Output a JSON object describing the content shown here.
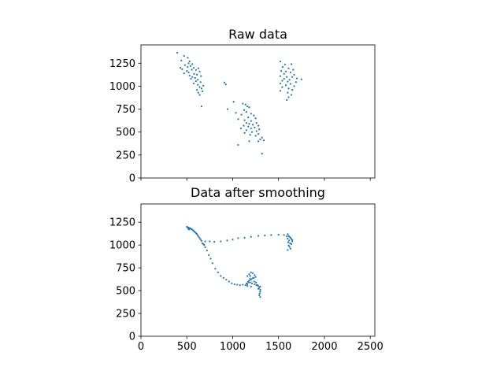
{
  "chart_data": [
    {
      "type": "scatter",
      "title": "Raw data",
      "xlabel": "",
      "ylabel": "",
      "xlim": [
        0,
        2550
      ],
      "ylim": [
        0,
        1450
      ],
      "xticks": [
        0,
        500,
        1000,
        1500,
        2000,
        2500
      ],
      "yticks": [
        0,
        250,
        500,
        750,
        1000,
        1250
      ],
      "show_xtick_labels": false,
      "grid": false,
      "marker_color": "#1f77b4",
      "points": [
        [
          395,
          1365
        ],
        [
          470,
          1330
        ],
        [
          510,
          1310
        ],
        [
          440,
          1280
        ],
        [
          530,
          1270
        ],
        [
          520,
          1250
        ],
        [
          560,
          1240
        ],
        [
          480,
          1230
        ],
        [
          540,
          1220
        ],
        [
          510,
          1210
        ],
        [
          430,
          1200
        ],
        [
          575,
          1200
        ],
        [
          625,
          1195
        ],
        [
          450,
          1185
        ],
        [
          555,
          1180
        ],
        [
          600,
          1175
        ],
        [
          500,
          1165
        ],
        [
          640,
          1160
        ],
        [
          520,
          1150
        ],
        [
          470,
          1140
        ],
        [
          580,
          1135
        ],
        [
          610,
          1125
        ],
        [
          530,
          1115
        ],
        [
          655,
          1110
        ],
        [
          560,
          1100
        ],
        [
          590,
          1090
        ],
        [
          545,
          1080
        ],
        [
          620,
          1070
        ],
        [
          600,
          1055
        ],
        [
          650,
          1045
        ],
        [
          575,
          1030
        ],
        [
          620,
          1015
        ],
        [
          680,
          1005
        ],
        [
          640,
          990
        ],
        [
          660,
          975
        ],
        [
          610,
          960
        ],
        [
          670,
          945
        ],
        [
          625,
          930
        ],
        [
          640,
          905
        ],
        [
          660,
          780
        ],
        [
          910,
          1040
        ],
        [
          925,
          1020
        ],
        [
          1010,
          830
        ],
        [
          945,
          750
        ],
        [
          1035,
          710
        ],
        [
          1110,
          810
        ],
        [
          1140,
          800
        ],
        [
          1160,
          780
        ],
        [
          1180,
          770
        ],
        [
          1125,
          740
        ],
        [
          1150,
          720
        ],
        [
          1200,
          700
        ],
        [
          1095,
          690
        ],
        [
          1230,
          680
        ],
        [
          1170,
          660
        ],
        [
          1250,
          650
        ],
        [
          1060,
          640
        ],
        [
          1130,
          630
        ],
        [
          1200,
          620
        ],
        [
          1150,
          600
        ],
        [
          1260,
          600
        ],
        [
          1180,
          590
        ],
        [
          1220,
          580
        ],
        [
          1120,
          570
        ],
        [
          1280,
          570
        ],
        [
          1170,
          560
        ],
        [
          1240,
          550
        ],
        [
          1090,
          540
        ],
        [
          1200,
          540
        ],
        [
          1290,
          530
        ],
        [
          1150,
          520
        ],
        [
          1260,
          510
        ],
        [
          1210,
          500
        ],
        [
          1130,
          490
        ],
        [
          1280,
          480
        ],
        [
          1190,
          470
        ],
        [
          1250,
          460
        ],
        [
          1320,
          440
        ],
        [
          1300,
          420
        ],
        [
          1340,
          410
        ],
        [
          1180,
          400
        ],
        [
          1280,
          400
        ],
        [
          1060,
          360
        ],
        [
          1320,
          265
        ],
        [
          1520,
          1270
        ],
        [
          1570,
          1235
        ],
        [
          1640,
          1240
        ],
        [
          1545,
          1210
        ],
        [
          1610,
          1195
        ],
        [
          1660,
          1180
        ],
        [
          1530,
          1165
        ],
        [
          1580,
          1160
        ],
        [
          1630,
          1150
        ],
        [
          1560,
          1135
        ],
        [
          1670,
          1125
        ],
        [
          1520,
          1110
        ],
        [
          1590,
          1100
        ],
        [
          1650,
          1100
        ],
        [
          1700,
          1085
        ],
        [
          1560,
          1080
        ],
        [
          1620,
          1070
        ],
        [
          1540,
          1060
        ],
        [
          1600,
          1050
        ],
        [
          1690,
          1045
        ],
        [
          1520,
          1030
        ],
        [
          1630,
          1025
        ],
        [
          1580,
          1010
        ],
        [
          1670,
          1000
        ],
        [
          1540,
          990
        ],
        [
          1610,
          975
        ],
        [
          1650,
          960
        ],
        [
          1520,
          950
        ],
        [
          1600,
          930
        ],
        [
          1640,
          905
        ],
        [
          1610,
          880
        ],
        [
          1590,
          850
        ],
        [
          1750,
          1075
        ]
      ]
    },
    {
      "type": "scatter",
      "title": "Data after smoothing",
      "xlabel": "",
      "ylabel": "",
      "xlim": [
        0,
        2550
      ],
      "ylim": [
        0,
        1450
      ],
      "xticks": [
        0,
        500,
        1000,
        1500,
        2000,
        2500
      ],
      "yticks": [
        0,
        250,
        500,
        750,
        1000,
        1250
      ],
      "show_xtick_labels": true,
      "grid": false,
      "marker_color": "#1f77b4",
      "points": [
        [
          500,
          1200
        ],
        [
          510,
          1195
        ],
        [
          520,
          1190
        ],
        [
          530,
          1185
        ],
        [
          515,
          1180
        ],
        [
          540,
          1180
        ],
        [
          550,
          1175
        ],
        [
          525,
          1170
        ],
        [
          560,
          1170
        ],
        [
          570,
          1160
        ],
        [
          580,
          1150
        ],
        [
          590,
          1140
        ],
        [
          600,
          1130
        ],
        [
          610,
          1120
        ],
        [
          620,
          1105
        ],
        [
          630,
          1090
        ],
        [
          640,
          1075
        ],
        [
          650,
          1060
        ],
        [
          660,
          1045
        ],
        [
          670,
          1020
        ],
        [
          680,
          1010
        ],
        [
          690,
          1000
        ],
        [
          700,
          975
        ],
        [
          720,
          940
        ],
        [
          740,
          890
        ],
        [
          760,
          850
        ],
        [
          780,
          800
        ],
        [
          810,
          740
        ],
        [
          840,
          700
        ],
        [
          870,
          660
        ],
        [
          900,
          640
        ],
        [
          930,
          620
        ],
        [
          960,
          600
        ],
        [
          990,
          580
        ],
        [
          1020,
          570
        ],
        [
          1050,
          565
        ],
        [
          1080,
          560
        ],
        [
          1110,
          565
        ],
        [
          1140,
          560
        ],
        [
          1160,
          570
        ],
        [
          1170,
          590
        ],
        [
          1180,
          610
        ],
        [
          1190,
          630
        ],
        [
          1160,
          660
        ],
        [
          1180,
          680
        ],
        [
          1200,
          700
        ],
        [
          1220,
          690
        ],
        [
          1240,
          670
        ],
        [
          1250,
          650
        ],
        [
          1230,
          640
        ],
        [
          1200,
          620
        ],
        [
          1170,
          600
        ],
        [
          1210,
          580
        ],
        [
          1240,
          570
        ],
        [
          1260,
          560
        ],
        [
          1280,
          550
        ],
        [
          1290,
          530
        ],
        [
          1300,
          510
        ],
        [
          1300,
          490
        ],
        [
          1295,
          470
        ],
        [
          1290,
          450
        ],
        [
          1300,
          430
        ],
        [
          1150,
          580
        ],
        [
          1190,
          590
        ],
        [
          1270,
          560
        ],
        [
          1160,
          550
        ],
        [
          1200,
          545
        ],
        [
          1235,
          600
        ],
        [
          1190,
          660
        ],
        [
          1215,
          635
        ],
        [
          1280,
          520
        ],
        [
          1300,
          545
        ],
        [
          1255,
          590
        ],
        [
          700,
          1040
        ],
        [
          750,
          1040
        ],
        [
          800,
          1035
        ],
        [
          870,
          1040
        ],
        [
          940,
          1050
        ],
        [
          1000,
          1060
        ],
        [
          1060,
          1075
        ],
        [
          1130,
          1080
        ],
        [
          1200,
          1090
        ],
        [
          1280,
          1100
        ],
        [
          1350,
          1105
        ],
        [
          1420,
          1110
        ],
        [
          1500,
          1112
        ],
        [
          1560,
          1110
        ],
        [
          1600,
          1120
        ],
        [
          1610,
          1100
        ],
        [
          1620,
          1090
        ],
        [
          1630,
          1080
        ],
        [
          1600,
          1070
        ],
        [
          1640,
          1065
        ],
        [
          1615,
          1050
        ],
        [
          1650,
          1040
        ],
        [
          1605,
          1030
        ],
        [
          1625,
          1020
        ],
        [
          1640,
          1010
        ],
        [
          1610,
          995
        ],
        [
          1620,
          980
        ],
        [
          1630,
          960
        ],
        [
          1600,
          945
        ],
        [
          1650,
          1055
        ],
        [
          1590,
          1095
        ]
      ]
    }
  ]
}
